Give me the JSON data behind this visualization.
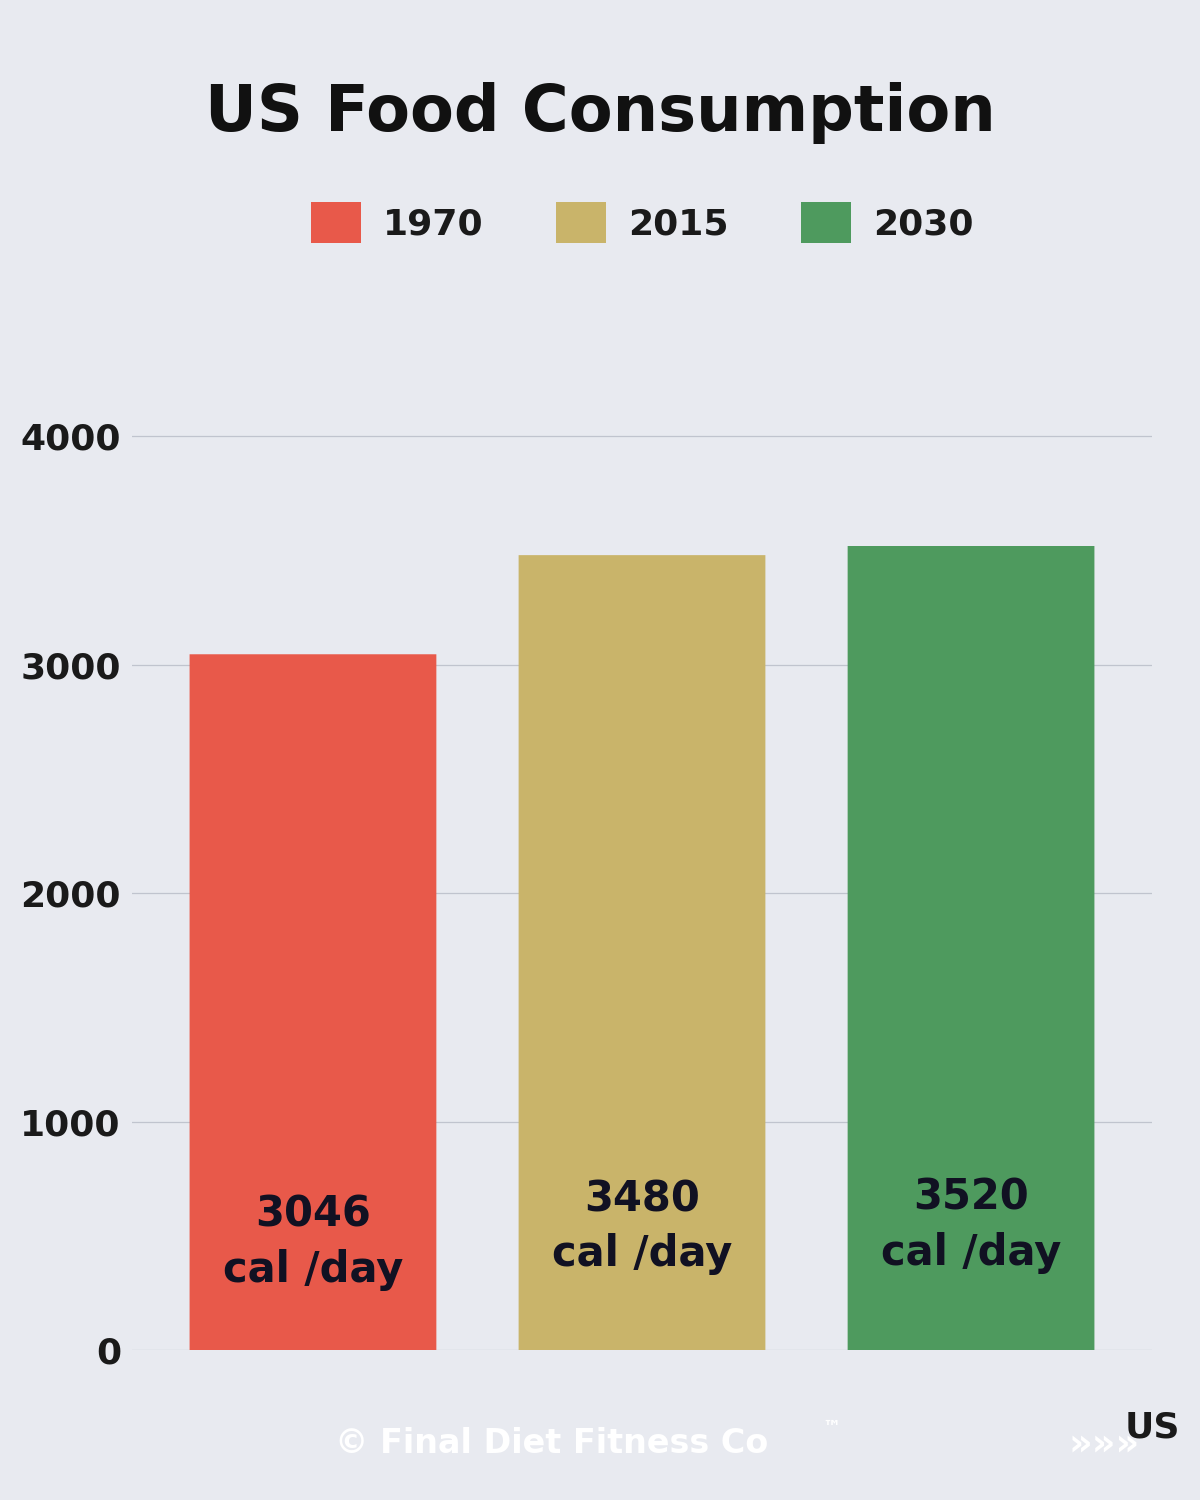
{
  "title": "US Food Consumption",
  "categories": [
    "1970",
    "2015",
    "2030"
  ],
  "values": [
    3046,
    3480,
    3520
  ],
  "bar_colors": [
    "#E8594A",
    "#C9B46A",
    "#4E9A5E"
  ],
  "bar_labels": [
    "3046\ncal /day",
    "3480\ncal /day",
    "3520\ncal /day"
  ],
  "xlabel": "US",
  "ylim": [
    0,
    4400
  ],
  "yticks": [
    0,
    1000,
    2000,
    3000,
    4000
  ],
  "background_color": "#E8EAF0",
  "footer_bg_color": "#5B5B9B",
  "footer_text": "© Final Diet Fitness Co",
  "footer_trademark": "™",
  "footer_arrow": "»»»",
  "title_fontsize": 46,
  "legend_fontsize": 26,
  "axis_fontsize": 26,
  "bar_label_fontsize": 30,
  "xlabel_fontsize": 26,
  "footer_fontsize": 24
}
